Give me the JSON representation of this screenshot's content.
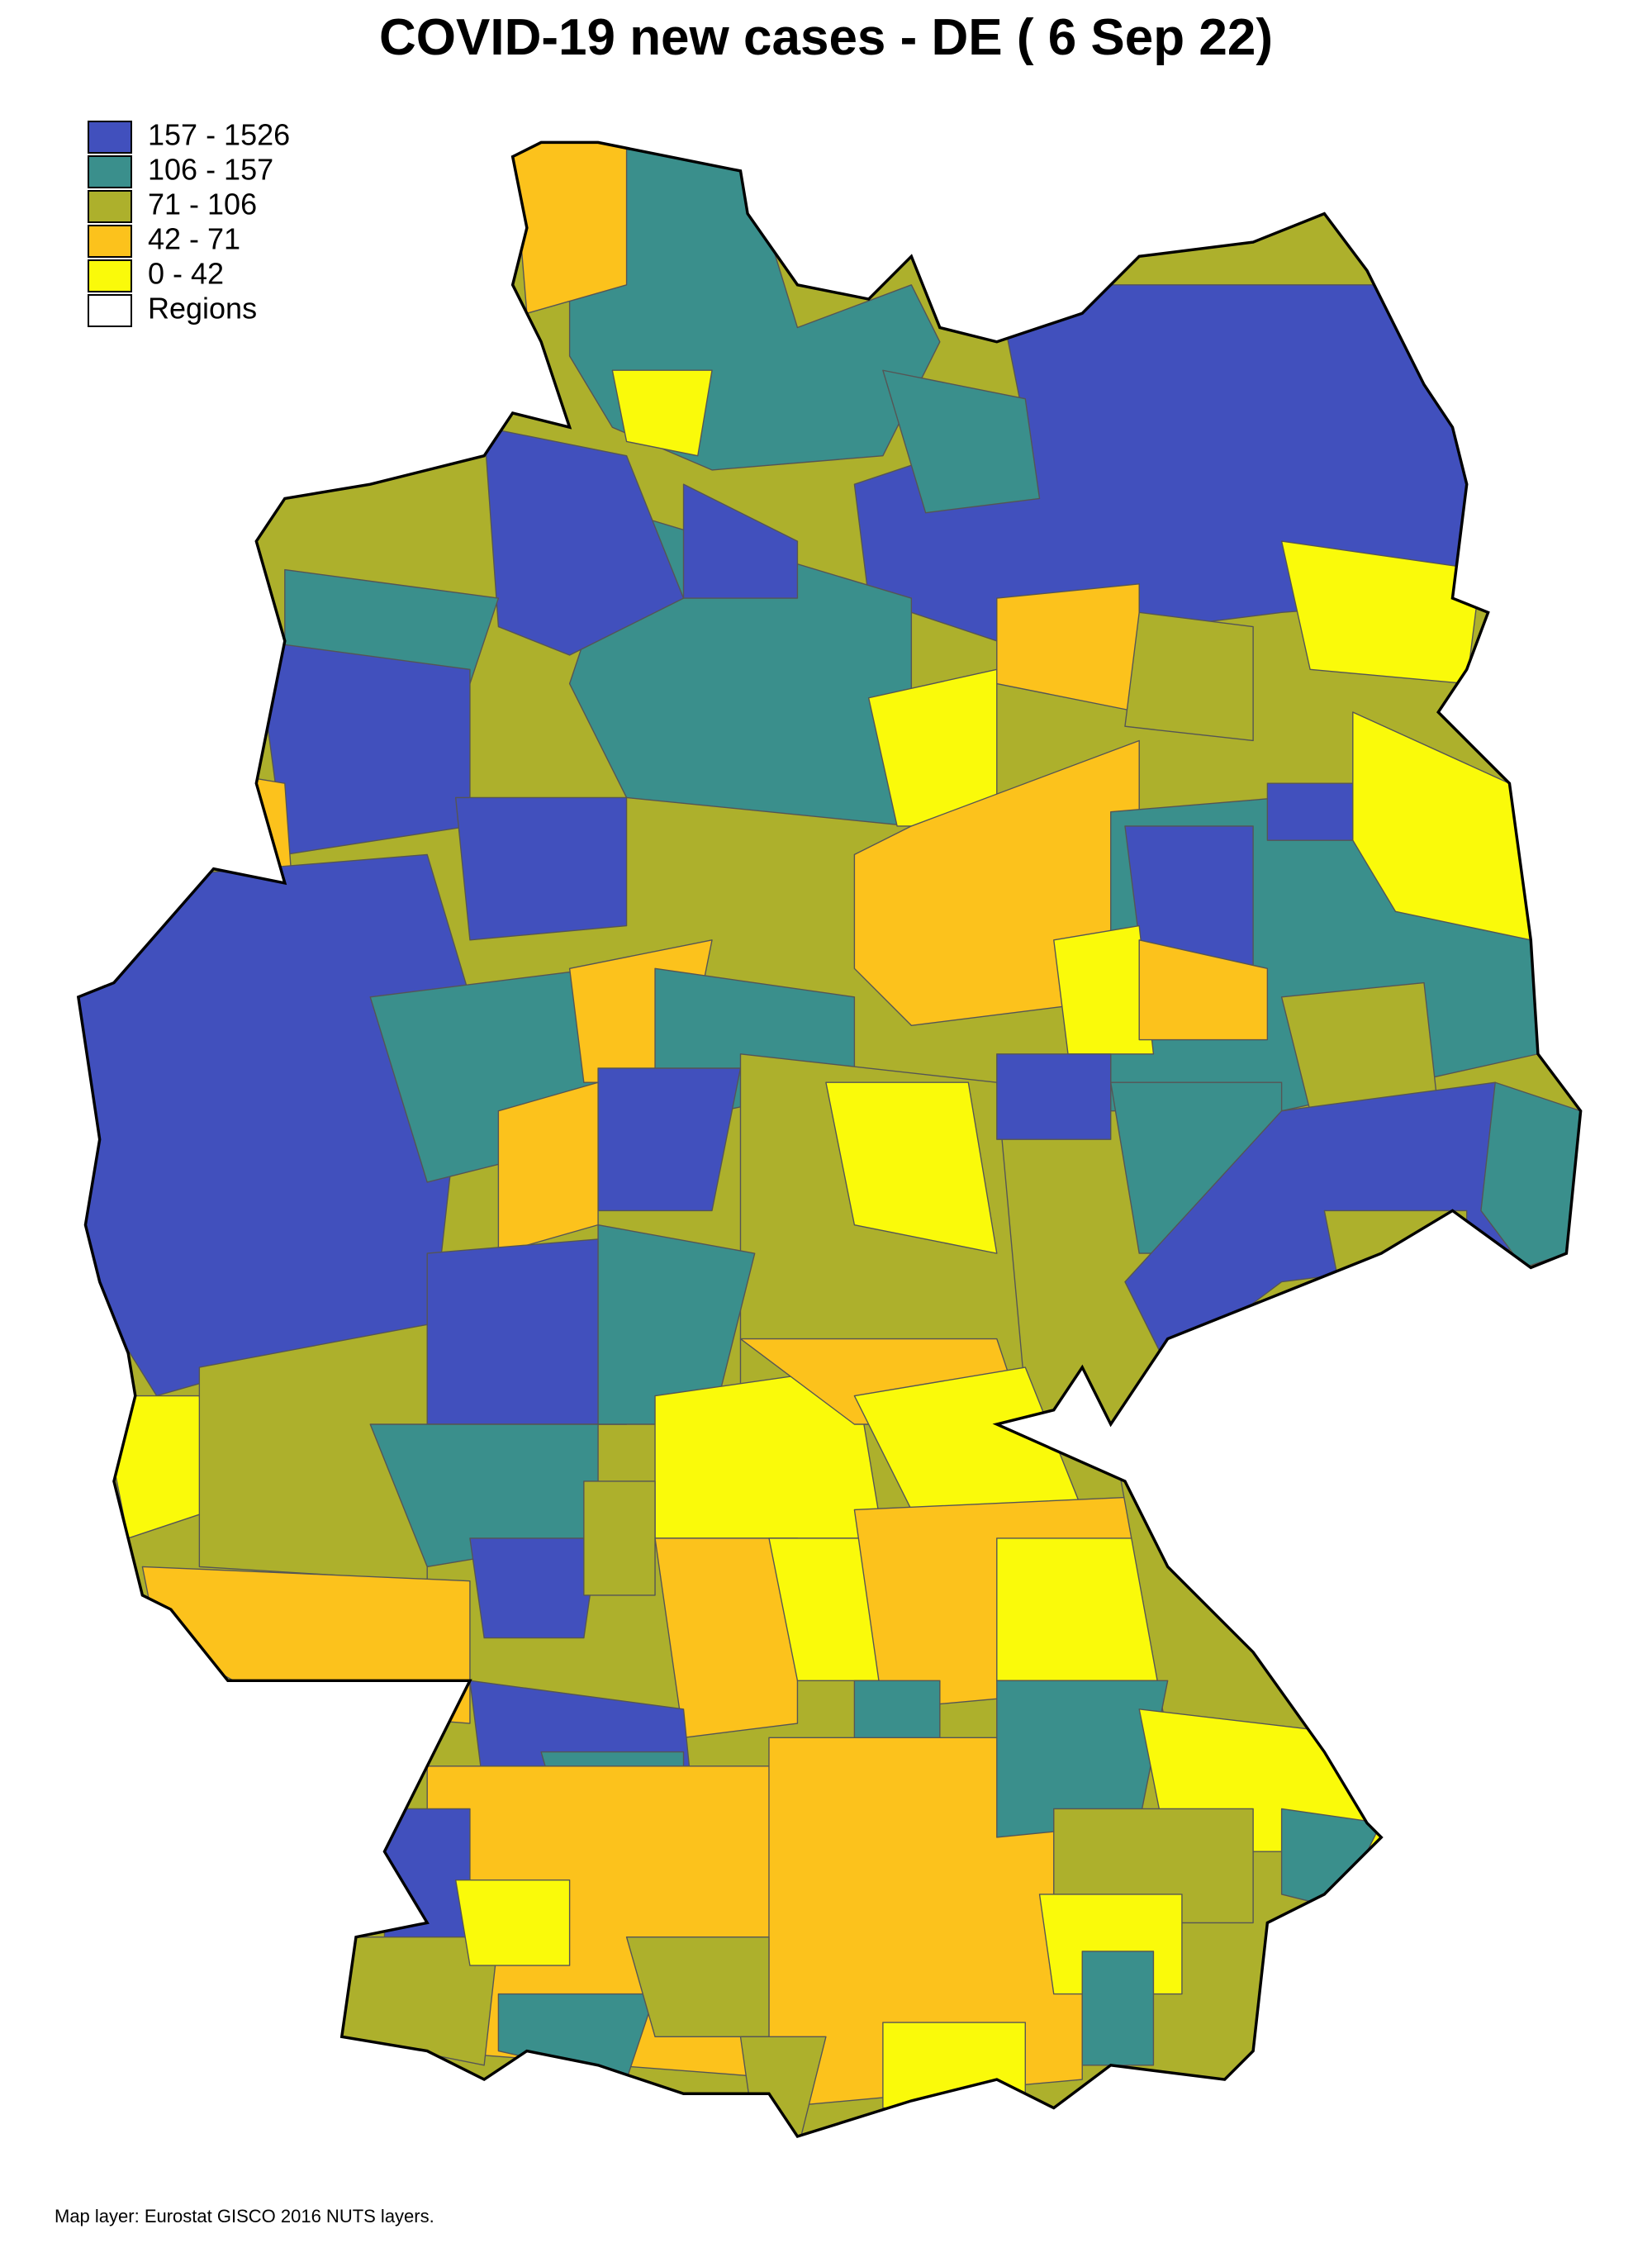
{
  "title": "COVID-19 new cases - DE ( 6 Sep 22)",
  "legend": {
    "items": [
      {
        "label": "157 - 1526",
        "color": "#4150bd"
      },
      {
        "label": "106 - 157",
        "color": "#3a8f8c"
      },
      {
        "label": "71 - 106",
        "color": "#adb02c"
      },
      {
        "label": "42 - 71",
        "color": "#fcc21c"
      },
      {
        "label": "0 - 42",
        "color": "#fafa0a"
      },
      {
        "label": "Regions",
        "color": "#ffffff"
      }
    ]
  },
  "source": "Map layer: Eurostat GISCO 2016 NUTS layers."
}
